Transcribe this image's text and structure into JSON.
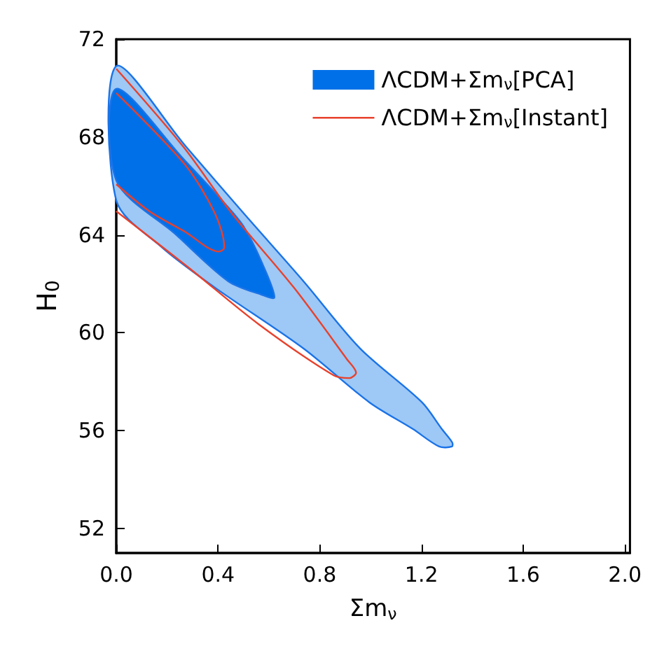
{
  "chart_data": {
    "type": "area",
    "xlabel": "Σm$_{ν}$",
    "ylabel": "H$_{0}$",
    "xlim": [
      0,
      2.02
    ],
    "ylim": [
      51,
      72
    ],
    "xticks": [
      {
        "value": 0,
        "label": "0.0"
      },
      {
        "value": 0.4,
        "label": "0.4"
      },
      {
        "value": 0.8,
        "label": "0.8"
      },
      {
        "value": 1.2,
        "label": "1.2"
      },
      {
        "value": 1.6,
        "label": "1.6"
      },
      {
        "value": 2.0,
        "label": "2.0"
      }
    ],
    "yticks": [
      52,
      56,
      60,
      64,
      68,
      72
    ],
    "grid": false,
    "legend": "top right",
    "series": [
      {
        "color": "#9ec8f5",
        "x": [
          0,
          0.275,
          0.503,
          0.736,
          0.959,
          1.202,
          1.28,
          1.321,
          1.32,
          1.27,
          1.166,
          0.995,
          0.736,
          0.389,
          0.181,
          0
        ],
        "values": [
          70.9,
          67.6,
          64.86,
          62.11,
          59.36,
          57.16,
          56.07,
          55.52,
          55.35,
          55.35,
          56.07,
          57.16,
          59.36,
          61.84,
          63.48,
          65.41
        ]
      },
      {
        "name": "ΛCDM+Σm$_{ν}$[PCA]",
        "color": "#0070e8",
        "x": [
          0,
          0.269,
          0.44,
          0.503,
          0.57,
          0.622,
          0.57,
          0.44,
          0.233,
          0
        ],
        "values": [
          69.97,
          67.05,
          65.13,
          64.31,
          62.93,
          61.45,
          61.56,
          62.11,
          64.03,
          66.23
        ]
      },
      {
        "type": "line",
        "name": "ΛCDM+Σm$_{ν}$[Instant]",
        "color": "#e8412c",
        "x": [
          0,
          0.264,
          0.456,
          0.699,
          0.907,
          0.943,
          0.917,
          0.855,
          0.56,
          0.285,
          0
        ],
        "values": [
          70.79,
          67.6,
          64.86,
          61.84,
          58.92,
          58.37,
          58.15,
          58.26,
          60.35,
          62.66,
          64.97
        ]
      },
      {
        "type": "line",
        "color": "#e8412c",
        "x": [
          0,
          0.269,
          0.389,
          0.425,
          0.404,
          0.269,
          0.13,
          0
        ],
        "values": [
          69.8,
          66.89,
          64.86,
          63.48,
          63.32,
          64.14,
          64.97,
          66.07
        ]
      }
    ]
  }
}
